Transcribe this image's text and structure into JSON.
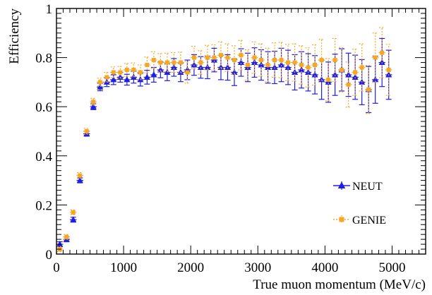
{
  "chart_data": {
    "type": "scatter",
    "title": "",
    "xlabel": "True muon momentum (MeV/c)",
    "ylabel": "Efficiency",
    "xlim": [
      0,
      5500
    ],
    "ylim": [
      0,
      1
    ],
    "x_ticks": [
      0,
      1000,
      2000,
      3000,
      4000,
      5000
    ],
    "x_tick_labels": [
      "0",
      "1000",
      "2000",
      "3000",
      "4000",
      "5000"
    ],
    "y_ticks": [
      0,
      0.2,
      0.4,
      0.6,
      0.8,
      1
    ],
    "y_tick_labels": [
      "0",
      "0.2",
      "0.4",
      "0.6",
      "0.8",
      "1"
    ],
    "grid": false,
    "legend_position": "bottom-right",
    "x": [
      50,
      150,
      250,
      350,
      450,
      550,
      650,
      750,
      850,
      950,
      1050,
      1150,
      1250,
      1350,
      1450,
      1550,
      1650,
      1750,
      1850,
      1950,
      2050,
      2150,
      2250,
      2350,
      2450,
      2550,
      2650,
      2750,
      2850,
      2950,
      3050,
      3150,
      3250,
      3350,
      3450,
      3550,
      3650,
      3750,
      3850,
      3950,
      4050,
      4150,
      4250,
      4350,
      4450,
      4550,
      4650,
      4750,
      4850,
      4950
    ],
    "series": [
      {
        "name": "NEUT",
        "color": "#1e1ee6",
        "marker": "triangle",
        "line_style": "solid",
        "values": [
          0.04,
          0.06,
          0.14,
          0.3,
          0.49,
          0.6,
          0.68,
          0.7,
          0.71,
          0.72,
          0.71,
          0.72,
          0.71,
          0.72,
          0.73,
          0.75,
          0.74,
          0.76,
          0.74,
          0.75,
          0.77,
          0.76,
          0.76,
          0.79,
          0.76,
          0.76,
          0.74,
          0.78,
          0.76,
          0.78,
          0.77,
          0.76,
          0.76,
          0.77,
          0.76,
          0.74,
          0.75,
          0.74,
          0.73,
          0.71,
          0.7,
          0.73,
          0.75,
          0.73,
          0.72,
          0.7,
          0.67,
          0.71,
          0.78,
          0.73
        ],
        "errors": [
          0.01,
          0.01,
          0.01,
          0.01,
          0.01,
          0.012,
          0.015,
          0.018,
          0.02,
          0.02,
          0.022,
          0.024,
          0.026,
          0.028,
          0.03,
          0.032,
          0.034,
          0.036,
          0.038,
          0.04,
          0.042,
          0.044,
          0.046,
          0.048,
          0.05,
          0.052,
          0.054,
          0.056,
          0.058,
          0.06,
          0.062,
          0.064,
          0.066,
          0.068,
          0.07,
          0.072,
          0.074,
          0.076,
          0.078,
          0.08,
          0.082,
          0.084,
          0.086,
          0.088,
          0.09,
          0.092,
          0.094,
          0.096,
          0.098,
          0.1
        ]
      },
      {
        "name": "GENIE",
        "color": "#f5a623",
        "marker": "square",
        "line_style": "dotted",
        "values": [
          0.02,
          0.07,
          0.17,
          0.32,
          0.5,
          0.62,
          0.7,
          0.72,
          0.74,
          0.74,
          0.75,
          0.75,
          0.74,
          0.77,
          0.79,
          0.78,
          0.78,
          0.78,
          0.78,
          0.74,
          0.8,
          0.78,
          0.8,
          0.8,
          0.81,
          0.8,
          0.79,
          0.81,
          0.77,
          0.8,
          0.79,
          0.77,
          0.79,
          0.79,
          0.78,
          0.78,
          0.77,
          0.76,
          0.77,
          0.79,
          0.71,
          0.79,
          0.75,
          0.69,
          0.74,
          0.76,
          0.67,
          0.8,
          0.82,
          0.75
        ],
        "errors": [
          0.01,
          0.01,
          0.01,
          0.012,
          0.012,
          0.014,
          0.016,
          0.02,
          0.022,
          0.024,
          0.026,
          0.028,
          0.03,
          0.032,
          0.034,
          0.036,
          0.038,
          0.04,
          0.042,
          0.044,
          0.046,
          0.048,
          0.05,
          0.052,
          0.054,
          0.056,
          0.058,
          0.06,
          0.062,
          0.064,
          0.066,
          0.068,
          0.07,
          0.072,
          0.074,
          0.076,
          0.078,
          0.08,
          0.082,
          0.084,
          0.086,
          0.088,
          0.09,
          0.092,
          0.094,
          0.096,
          0.098,
          0.1,
          0.102,
          0.104
        ]
      }
    ]
  }
}
